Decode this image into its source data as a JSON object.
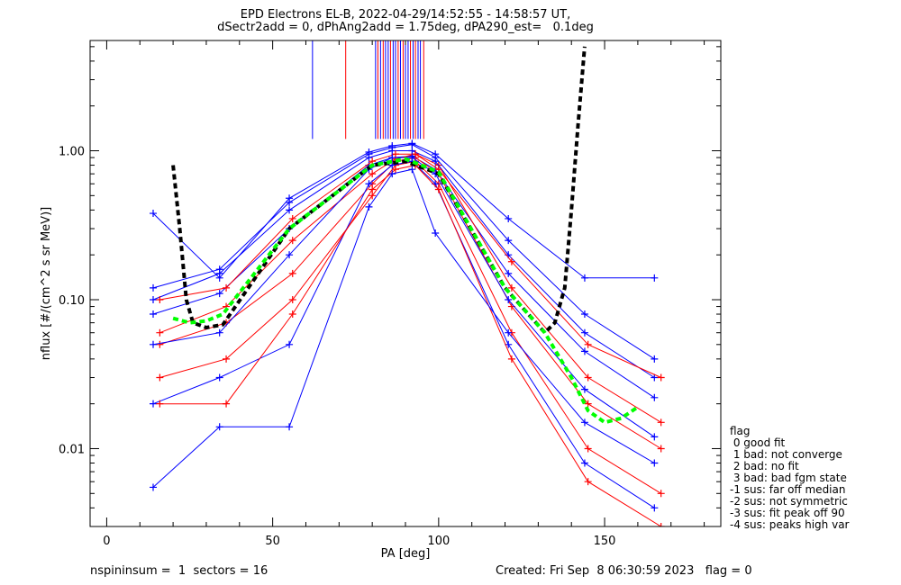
{
  "title_line1": "EPD Electrons EL-B, 2022-04-29/14:52:55 - 14:58:57 UT,",
  "title_line2": "dSectr2add = 0, dPhAng2add = 1.75deg, dPA290_est=   0.1deg",
  "footer_left": "nspininsum =  1  sectors = 16",
  "footer_right": "Created: Fri Sep  8 06:30:59 2023   flag = 0",
  "legend": {
    "title": "flag",
    "items": [
      " 0 good fit",
      " 1 bad: not converge",
      " 2 bad: no fit",
      " 3 bad: bad fgm state",
      "-1 sus: far off median",
      "-2 sus: not symmetric",
      "-3 sus: fit peak off 90",
      "-4 sus: peaks high var"
    ]
  },
  "colors": {
    "blue": "#0000ff",
    "red": "#ff0000",
    "green": "#00ff00",
    "black": "#000000"
  },
  "chart_data": {
    "type": "line",
    "title": "EPD Electrons EL-B, 2022-04-29/14:52:55 - 14:58:57 UT,",
    "subtitle": "dSectr2add = 0, dPhAng2add = 1.75deg, dPA290_est=   0.1deg",
    "xlabel": "PA [deg]",
    "ylabel": "nflux [#/(cm^2 s sr MeV)]",
    "xlim": [
      -5,
      185
    ],
    "ylim": [
      0.003,
      5.5
    ],
    "yscale": "log",
    "x_ticks": [
      0,
      50,
      100,
      150
    ],
    "x_tick_labels": [
      "0",
      "50",
      "100",
      "150"
    ],
    "y_ticks": [
      0.01,
      0.1,
      1.0
    ],
    "y_tick_labels": [
      "0.01",
      "0.10",
      "1.00"
    ],
    "series": [
      {
        "color": "blue",
        "x": [
          14,
          34,
          55,
          79,
          86,
          92,
          99,
          121,
          144,
          165
        ],
        "y": [
          0.08,
          0.11,
          0.3,
          0.8,
          0.9,
          0.92,
          0.75,
          0.15,
          0.045,
          0.022
        ]
      },
      {
        "color": "red",
        "x": [
          16,
          36,
          56,
          80,
          87,
          93,
          100,
          122,
          145,
          167
        ],
        "y": [
          0.06,
          0.09,
          0.25,
          0.7,
          0.88,
          0.95,
          0.8,
          0.12,
          0.03,
          0.015
        ]
      },
      {
        "color": "blue",
        "x": [
          14,
          34,
          55,
          79,
          86,
          92,
          99,
          121,
          144,
          165
        ],
        "y": [
          0.1,
          0.15,
          0.4,
          0.9,
          1.0,
          1.0,
          0.85,
          0.2,
          0.06,
          0.03
        ]
      },
      {
        "color": "red",
        "x": [
          16,
          36,
          56,
          80,
          87,
          93,
          100,
          122,
          145,
          167
        ],
        "y": [
          0.05,
          0.07,
          0.15,
          0.6,
          0.85,
          0.9,
          0.7,
          0.09,
          0.02,
          0.01
        ]
      },
      {
        "color": "blue",
        "x": [
          14,
          34,
          55,
          79,
          86,
          92,
          99,
          121,
          144,
          165
        ],
        "y": [
          0.12,
          0.16,
          0.45,
          0.95,
          1.05,
          1.1,
          0.9,
          0.25,
          0.08,
          0.04
        ]
      },
      {
        "color": "red",
        "x": [
          16,
          36,
          56,
          80,
          87,
          93,
          100,
          122,
          145,
          167
        ],
        "y": [
          0.03,
          0.04,
          0.1,
          0.5,
          0.8,
          0.85,
          0.6,
          0.06,
          0.01,
          0.005
        ]
      },
      {
        "color": "blue",
        "x": [
          14,
          34,
          55,
          79,
          86,
          92,
          99,
          121,
          144,
          165
        ],
        "y": [
          0.02,
          0.03,
          0.05,
          0.6,
          0.8,
          0.85,
          0.6,
          0.05,
          0.008,
          0.004
        ]
      },
      {
        "color": "red",
        "x": [
          16,
          36,
          56,
          80,
          87,
          93,
          100,
          122,
          145,
          167
        ],
        "y": [
          0.1,
          0.12,
          0.35,
          0.85,
          0.95,
          0.95,
          0.75,
          0.18,
          0.05,
          0.03
        ]
      },
      {
        "color": "blue",
        "x": [
          14,
          34,
          55,
          79,
          86,
          92,
          99,
          121,
          144,
          165
        ],
        "y": [
          0.05,
          0.06,
          0.2,
          0.75,
          0.9,
          0.9,
          0.7,
          0.1,
          0.025,
          0.012
        ]
      },
      {
        "color": "red",
        "x": [
          16,
          36,
          56,
          80,
          87,
          93,
          100,
          122,
          145,
          167
        ],
        "y": [
          0.02,
          0.02,
          0.08,
          0.55,
          0.75,
          0.8,
          0.55,
          0.04,
          0.006,
          0.003
        ]
      },
      {
        "color": "blue",
        "x": [
          14,
          34,
          55,
          79,
          86,
          92,
          99,
          121,
          144,
          165
        ],
        "y": [
          0.0055,
          0.014,
          0.014,
          0.42,
          0.7,
          0.75,
          0.28,
          0.06,
          0.015,
          0.008
        ]
      },
      {
        "color": "blue",
        "x": [
          14,
          34,
          55,
          79,
          86,
          92,
          99,
          121,
          144,
          165
        ],
        "y": [
          0.38,
          0.14,
          0.48,
          0.98,
          1.08,
          1.12,
          0.95,
          0.35,
          0.14,
          0.14
        ]
      }
    ],
    "fit_black": {
      "x": [
        20,
        22,
        24,
        26,
        30,
        35,
        55,
        80,
        90,
        100,
        120,
        132,
        135,
        138,
        140,
        142,
        144
      ],
      "y": [
        0.8,
        0.3,
        0.1,
        0.07,
        0.065,
        0.068,
        0.3,
        0.8,
        0.85,
        0.7,
        0.12,
        0.06,
        0.07,
        0.12,
        0.4,
        1.5,
        5.0
      ]
    },
    "fit_green": {
      "x": [
        20,
        25,
        30,
        35,
        55,
        80,
        90,
        100,
        120,
        132,
        140,
        145,
        150,
        155,
        160
      ],
      "y": [
        0.075,
        0.07,
        0.072,
        0.08,
        0.3,
        0.8,
        0.88,
        0.72,
        0.12,
        0.06,
        0.03,
        0.018,
        0.015,
        0.016,
        0.019
      ]
    },
    "vertical_lines": [
      {
        "x": 62,
        "color": "blue"
      },
      {
        "x": 72,
        "color": "red"
      },
      {
        "x": 81,
        "color": "blue"
      },
      {
        "x": 81.7,
        "color": "red"
      },
      {
        "x": 82.5,
        "color": "blue"
      },
      {
        "x": 83.3,
        "color": "red"
      },
      {
        "x": 84,
        "color": "blue"
      },
      {
        "x": 84.8,
        "color": "blue"
      },
      {
        "x": 85.5,
        "color": "red"
      },
      {
        "x": 86.3,
        "color": "blue"
      },
      {
        "x": 87,
        "color": "blue"
      },
      {
        "x": 87.8,
        "color": "red"
      },
      {
        "x": 88.5,
        "color": "blue"
      },
      {
        "x": 89.3,
        "color": "red"
      },
      {
        "x": 90,
        "color": "blue"
      },
      {
        "x": 90.8,
        "color": "blue"
      },
      {
        "x": 91.5,
        "color": "red"
      },
      {
        "x": 92.3,
        "color": "blue"
      },
      {
        "x": 93,
        "color": "red"
      },
      {
        "x": 93.8,
        "color": "blue"
      },
      {
        "x": 94.5,
        "color": "blue"
      },
      {
        "x": 95.5,
        "color": "red"
      }
    ],
    "legend_position": "right"
  }
}
